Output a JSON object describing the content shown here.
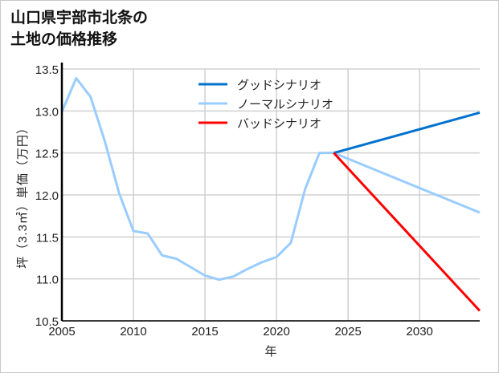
{
  "title_lines": [
    "山口県宇部市北条の",
    "土地の価格推移"
  ],
  "chart_data": {
    "type": "line",
    "title": "山口県宇部市北条の土地の価格推移",
    "xlabel": "年",
    "ylabel": "坪（3.3㎡）単価（万円）",
    "xlim": [
      2005,
      2034.2
    ],
    "ylim": [
      10.5,
      13.5
    ],
    "xticks": [
      2005,
      2010,
      2015,
      2020,
      2025,
      2030
    ],
    "yticks": [
      10.5,
      11.0,
      11.5,
      12.0,
      12.5,
      13.0,
      13.5
    ],
    "ytick_labels": [
      "10.5",
      "11.0",
      "11.5",
      "12.0",
      "12.5",
      "13.0",
      "13.5"
    ],
    "grid": true,
    "legend_position": "top-center",
    "series": [
      {
        "name": "グッドシナリオ",
        "color": "#0072CE",
        "x": [
          2024,
          2034.2
        ],
        "y": [
          12.5,
          12.98
        ]
      },
      {
        "name": "ノーマルシナリオ",
        "color": "#99CCFF",
        "x": [
          2005,
          2006,
          2007,
          2008,
          2009,
          2010,
          2011,
          2012,
          2013,
          2014,
          2015,
          2016,
          2017,
          2018,
          2019,
          2020,
          2021,
          2022,
          2023,
          2024,
          2034.2
        ],
        "y": [
          12.99,
          13.39,
          13.17,
          12.64,
          12.02,
          11.57,
          11.54,
          11.28,
          11.24,
          11.14,
          11.04,
          10.99,
          11.03,
          11.12,
          11.2,
          11.26,
          11.43,
          12.07,
          12.5,
          12.5,
          11.79
        ]
      },
      {
        "name": "バッドシナリオ",
        "color": "#FF0000",
        "x": [
          2024,
          2034.2
        ],
        "y": [
          12.5,
          10.62
        ]
      }
    ]
  }
}
